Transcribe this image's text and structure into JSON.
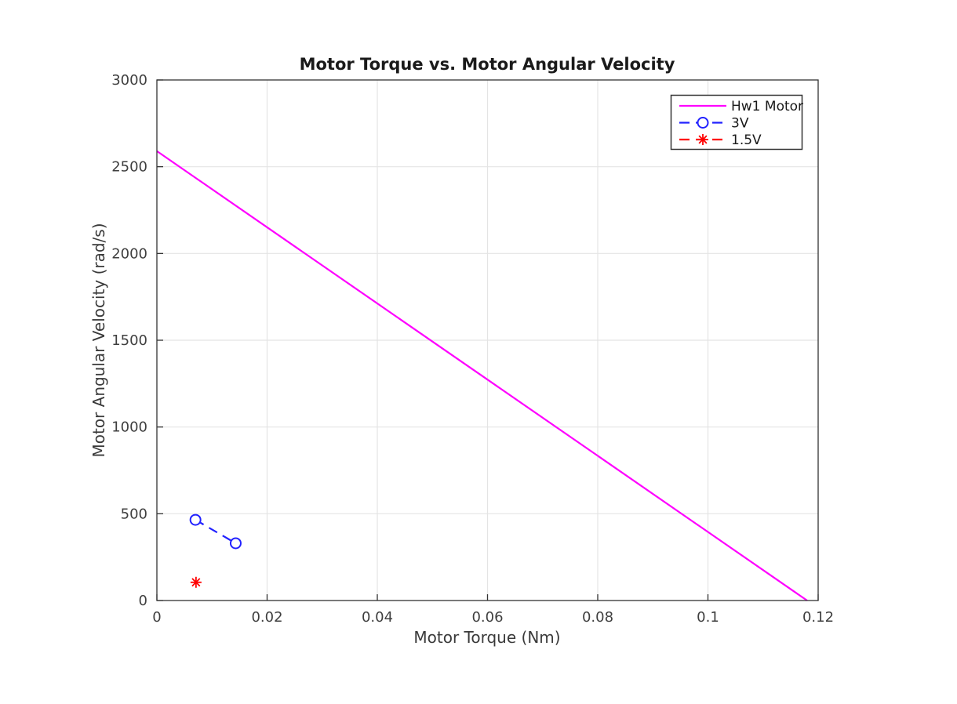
{
  "figure": {
    "background": "#ffffff"
  },
  "chart_data": {
    "type": "line",
    "title": "Motor Torque vs. Motor Angular Velocity",
    "xlabel": "Motor Torque (Nm)",
    "ylabel": "Motor Angular Velocity (rad/s)",
    "xlim": [
      0,
      0.12
    ],
    "ylim": [
      0,
      3000
    ],
    "x_ticks": [
      0,
      0.02,
      0.04,
      0.06,
      0.08,
      0.1,
      0.12
    ],
    "x_tick_labels": [
      "0",
      "0.02",
      "0.04",
      "0.06",
      "0.08",
      "0.1",
      "0.12"
    ],
    "y_ticks": [
      0,
      500,
      1000,
      1500,
      2000,
      2500,
      3000
    ],
    "y_tick_labels": [
      "0",
      "500",
      "1000",
      "1500",
      "2000",
      "2500",
      "3000"
    ],
    "grid": true,
    "legend_position": "top-right",
    "axis_color": "#333333",
    "grid_color": "#e4e4e4",
    "tick_label_color": "#3f3f3f",
    "series": [
      {
        "name": "Hw1 Motor",
        "color": "#ff00ff",
        "line_style": "solid",
        "marker": "none",
        "x": [
          0,
          0.118
        ],
        "y": [
          2590,
          0
        ]
      },
      {
        "name": "3V",
        "color": "#2222ff",
        "line_style": "dashed",
        "marker": "circle",
        "x": [
          0.007,
          0.0143
        ],
        "y": [
          465,
          330
        ]
      },
      {
        "name": "1.5V",
        "color": "#ff0000",
        "line_style": "dashed",
        "marker": "asterisk",
        "x": [
          0.0071
        ],
        "y": [
          105
        ]
      }
    ]
  }
}
